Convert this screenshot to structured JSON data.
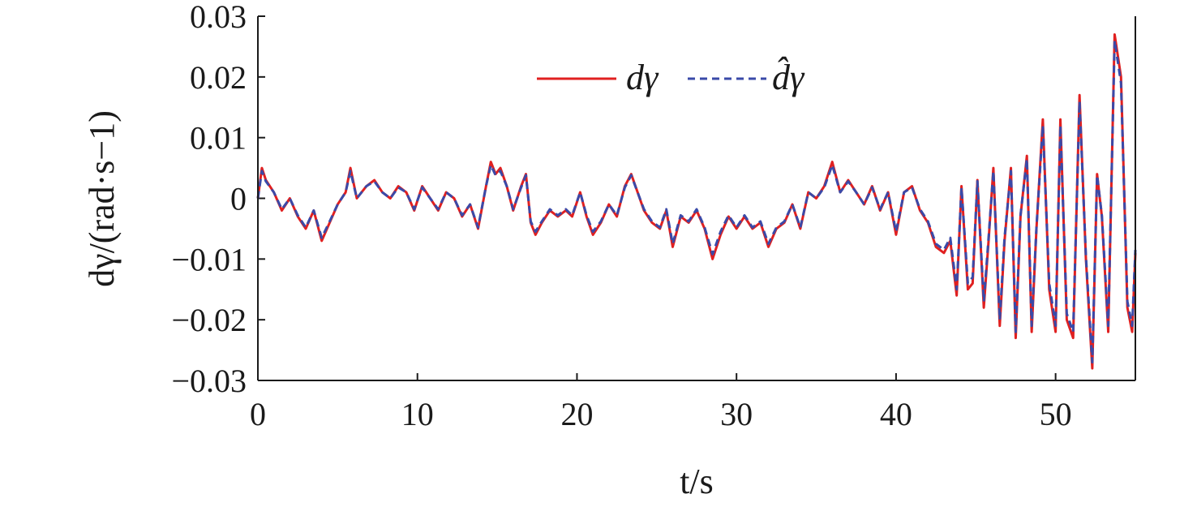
{
  "chart_data": {
    "type": "line",
    "title": "",
    "xlabel": "t/s",
    "ylabel": "dγ/(rad·s−1)",
    "xlim": [
      0,
      55
    ],
    "ylim": [
      -0.03,
      0.03
    ],
    "x_ticks": [
      0,
      10,
      20,
      30,
      40,
      50
    ],
    "x_tick_labels": [
      "0",
      "10",
      "20",
      "30",
      "40",
      "50"
    ],
    "y_ticks": [
      0.03,
      0.02,
      0.01,
      0,
      -0.01,
      -0.02,
      -0.03
    ],
    "y_tick_labels": [
      "0.03",
      "0.02",
      "0.01",
      "0",
      "−0.01",
      "−0.02",
      "−0.03"
    ],
    "grid": false,
    "legend_position": "top-center",
    "x": [
      0,
      0.25,
      0.5,
      1,
      1.5,
      2,
      2.5,
      3,
      3.5,
      4,
      4.5,
      5,
      5.5,
      5.8,
      6.2,
      6.8,
      7.3,
      7.8,
      8.3,
      8.8,
      9.3,
      9.8,
      10.3,
      10.8,
      11.3,
      11.8,
      12.3,
      12.8,
      13.3,
      13.8,
      14.3,
      14.6,
      14.9,
      15.2,
      15.6,
      16.0,
      16.5,
      16.8,
      17.1,
      17.4,
      17.8,
      18.3,
      18.8,
      19.3,
      19.7,
      20.2,
      20.6,
      21.0,
      21.5,
      22.0,
      22.5,
      23.0,
      23.4,
      23.8,
      24.2,
      24.7,
      25.2,
      25.6,
      26.0,
      26.5,
      27.0,
      27.5,
      28.0,
      28.5,
      29.0,
      29.5,
      30.0,
      30.5,
      31.0,
      31.5,
      32.0,
      32.5,
      33.0,
      33.5,
      34.0,
      34.5,
      35.0,
      35.5,
      36.0,
      36.5,
      37.0,
      37.5,
      38.0,
      38.5,
      39.0,
      39.5,
      40.0,
      40.5,
      41.0,
      41.5,
      42.0,
      42.5,
      43.0,
      43.4,
      43.8,
      44.1,
      44.5,
      44.8,
      45.1,
      45.5,
      45.8,
      46.1,
      46.5,
      46.8,
      47.2,
      47.5,
      47.8,
      48.2,
      48.5,
      48.8,
      49.2,
      49.6,
      50.0,
      50.3,
      50.7,
      51.1,
      51.5,
      51.9,
      52.3,
      52.6,
      52.9,
      53.3,
      53.7,
      54.1,
      54.5,
      54.8,
      55.0
    ],
    "series": [
      {
        "name": "dγ",
        "color": "#e02020",
        "dash": "solid",
        "values": [
          0.0,
          0.005,
          0.003,
          0.001,
          -0.002,
          0.0,
          -0.003,
          -0.005,
          -0.002,
          -0.007,
          -0.004,
          -0.001,
          0.001,
          0.005,
          0.0,
          0.002,
          0.003,
          0.001,
          0.0,
          0.002,
          0.001,
          -0.002,
          0.002,
          0.0,
          -0.002,
          0.001,
          0.0,
          -0.003,
          -0.001,
          -0.005,
          0.002,
          0.006,
          0.004,
          0.005,
          0.002,
          -0.002,
          0.002,
          0.004,
          -0.004,
          -0.006,
          -0.004,
          -0.002,
          -0.003,
          -0.002,
          -0.003,
          0.001,
          -0.003,
          -0.006,
          -0.004,
          -0.001,
          -0.003,
          0.002,
          0.004,
          0.001,
          -0.002,
          -0.004,
          -0.005,
          -0.002,
          -0.008,
          -0.003,
          -0.004,
          -0.002,
          -0.005,
          -0.01,
          -0.006,
          -0.003,
          -0.005,
          -0.003,
          -0.005,
          -0.004,
          -0.008,
          -0.005,
          -0.004,
          -0.001,
          -0.005,
          0.001,
          0.0,
          0.002,
          0.006,
          0.001,
          0.003,
          0.001,
          -0.001,
          0.002,
          -0.002,
          0.001,
          -0.006,
          0.001,
          0.002,
          -0.002,
          -0.004,
          -0.008,
          -0.009,
          -0.007,
          -0.016,
          0.002,
          -0.015,
          -0.014,
          0.003,
          -0.018,
          -0.007,
          0.005,
          -0.021,
          -0.007,
          0.005,
          -0.023,
          -0.003,
          0.007,
          -0.022,
          -0.005,
          0.013,
          -0.015,
          -0.022,
          0.013,
          -0.02,
          -0.023,
          0.017,
          -0.01,
          -0.028,
          0.004,
          -0.003,
          -0.022,
          0.027,
          0.02,
          -0.018,
          -0.022,
          -0.009
        ]
      },
      {
        "name": "d̂γ",
        "color": "#3a4aa8",
        "dash": "dashed",
        "values": [
          0.0,
          0.0045,
          0.0028,
          0.001,
          -0.0018,
          0.0,
          -0.0028,
          -0.0048,
          -0.002,
          -0.0065,
          -0.0038,
          -0.001,
          0.001,
          0.0045,
          0.0,
          0.002,
          0.0028,
          0.001,
          0.0,
          0.0018,
          0.001,
          -0.0018,
          0.0018,
          0.0,
          -0.0018,
          0.001,
          0.0,
          -0.0028,
          -0.001,
          -0.0048,
          0.002,
          0.0055,
          0.0038,
          0.0045,
          0.002,
          -0.0018,
          0.0018,
          0.0038,
          -0.0038,
          -0.0055,
          -0.0038,
          -0.0018,
          -0.0028,
          -0.0018,
          -0.0028,
          0.001,
          -0.0028,
          -0.0055,
          -0.0038,
          -0.001,
          -0.0028,
          0.0018,
          0.0038,
          0.001,
          -0.0018,
          -0.0038,
          -0.0048,
          -0.0018,
          -0.0075,
          -0.0028,
          -0.0038,
          -0.0018,
          -0.0048,
          -0.0092,
          -0.0055,
          -0.0028,
          -0.0048,
          -0.0028,
          -0.0048,
          -0.0038,
          -0.0075,
          -0.0048,
          -0.0038,
          -0.001,
          -0.0048,
          0.001,
          0.0,
          0.0018,
          0.0055,
          0.001,
          0.0028,
          0.001,
          -0.001,
          0.0018,
          -0.0018,
          0.001,
          -0.0055,
          0.001,
          0.0018,
          -0.0018,
          -0.0038,
          -0.0075,
          -0.0085,
          -0.0065,
          -0.015,
          0.0018,
          -0.014,
          -0.013,
          0.0028,
          -0.017,
          -0.0065,
          0.0045,
          -0.02,
          -0.0065,
          0.0045,
          -0.022,
          -0.0028,
          0.0065,
          -0.021,
          -0.0048,
          0.012,
          -0.014,
          -0.021,
          0.012,
          -0.019,
          -0.022,
          0.016,
          -0.0095,
          -0.027,
          0.0038,
          -0.0028,
          -0.021,
          0.026,
          0.019,
          -0.017,
          -0.021,
          -0.0085
        ]
      }
    ]
  }
}
